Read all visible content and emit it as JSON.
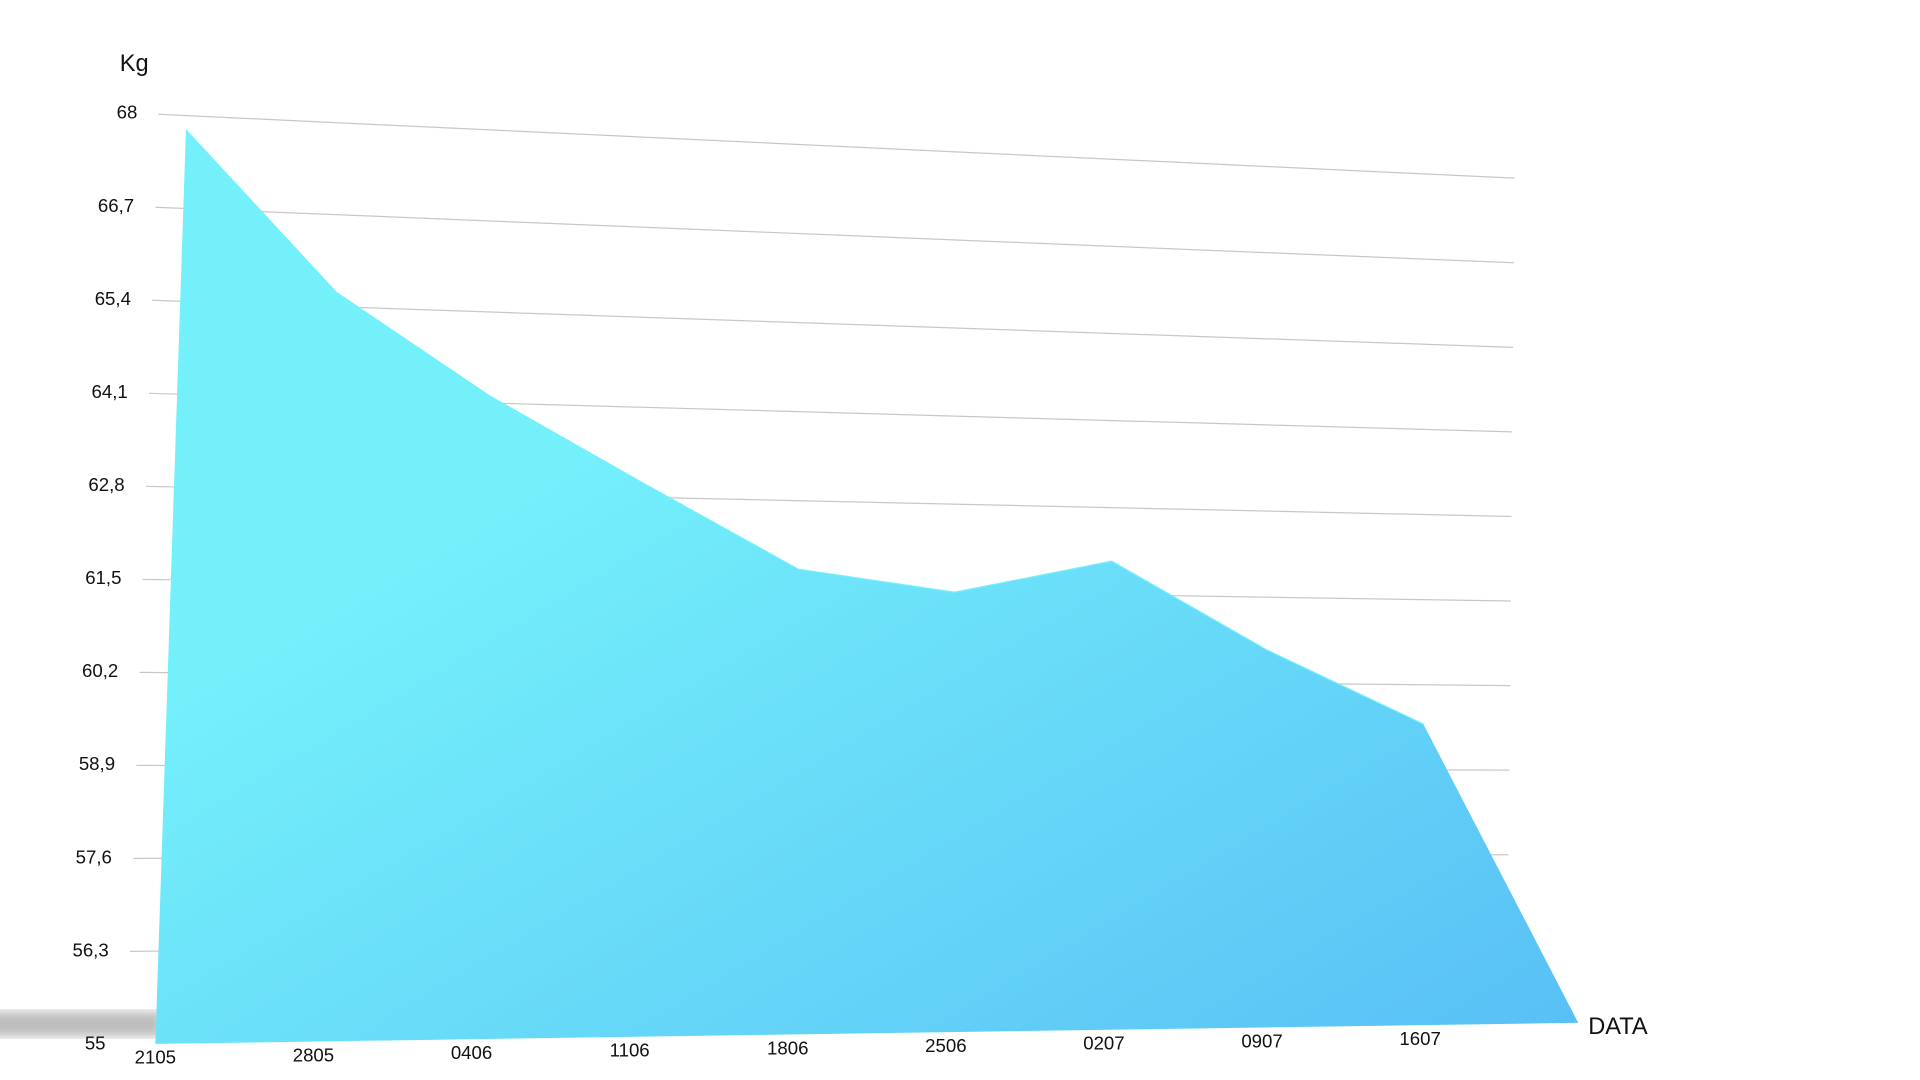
{
  "chart_data": {
    "type": "area",
    "y_label": "Kg",
    "x_label": "DATA",
    "categories": [
      "2105",
      "2805",
      "0406",
      "1106",
      "1806",
      "2506",
      "0207",
      "0907",
      "1607"
    ],
    "values": [
      67.8,
      65.6,
      64.2,
      63.0,
      61.8,
      61.5,
      62.0,
      60.7,
      59.6
    ],
    "colors": [
      "#74f0fb",
      "#58bff5"
    ],
    "ylim": [
      55,
      68
    ],
    "yticks": [
      55,
      {
        "value": 56.3,
        "label": "56,3"
      },
      {
        "value": 57.6,
        "label": "57,6"
      },
      {
        "value": 58.9,
        "label": "58,9"
      },
      {
        "value": 60.2,
        "label": "60,2"
      },
      {
        "value": 61.5,
        "label": "61,5"
      },
      {
        "value": 62.8,
        "label": "62,8"
      },
      {
        "value": 64.1,
        "label": "64,1"
      },
      {
        "value": 65.4,
        "label": "65,4"
      },
      {
        "value": 66.7,
        "label": "66,7"
      },
      68
    ],
    "grid": true
  }
}
